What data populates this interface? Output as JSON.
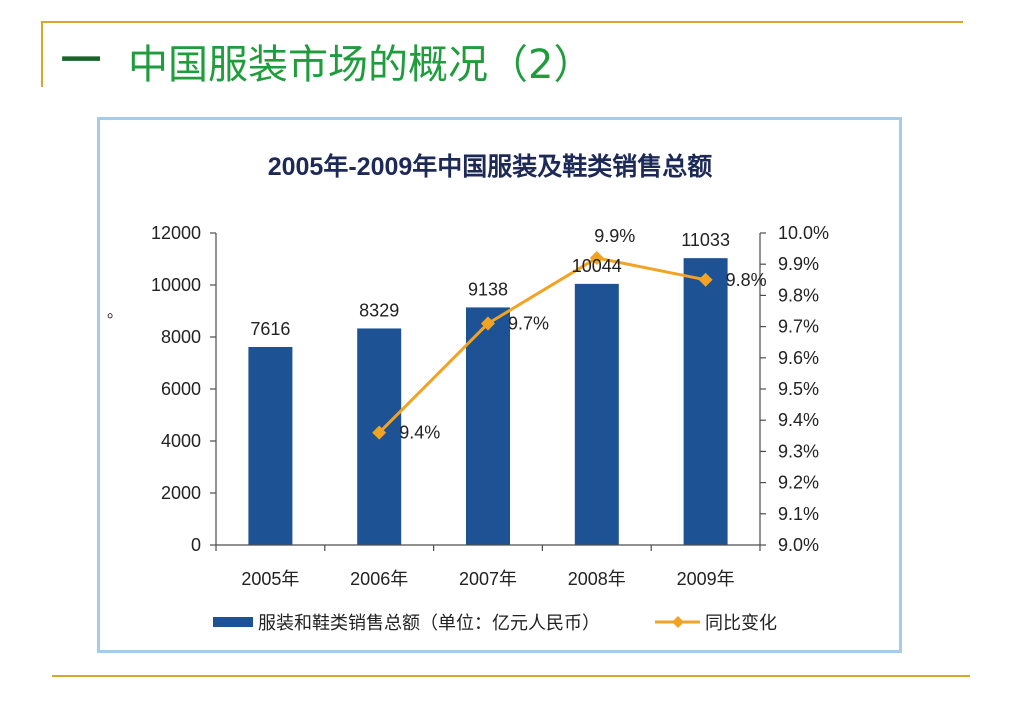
{
  "slide": {
    "bullet": "一",
    "title": "中国服装市场的概况（2）",
    "mark": "。"
  },
  "colors": {
    "accent_rule": "#d8a62c",
    "title": "#1f9d3c",
    "bullet": "#17642b",
    "chart_border": "#a8cbe7",
    "chart_title": "#1d2a57",
    "axis": "#4d4d4d",
    "text": "#222222"
  },
  "chart_data": {
    "type": "bar",
    "title": "2005年-2009年中国服装及鞋类销售总额",
    "categories": [
      "2005年",
      "2006年",
      "2007年",
      "2008年",
      "2009年"
    ],
    "series": [
      {
        "name": "服装和鞋类销售总额（单位：亿元人民币）",
        "type": "bar",
        "axis": "left",
        "color": "#1d5394",
        "values": [
          7616,
          8329,
          9138,
          10044,
          11033
        ],
        "data_labels": [
          "7616",
          "8329",
          "9138",
          "10044",
          "11033"
        ]
      },
      {
        "name": "同比变化",
        "type": "line",
        "axis": "right",
        "color": "#f2a324",
        "values": [
          null,
          9.36,
          9.71,
          9.92,
          9.85
        ],
        "data_labels": [
          "",
          "9.4%",
          "9.7%",
          "9.9%",
          "9.8%"
        ]
      }
    ],
    "y_left": {
      "min": 0,
      "max": 12000,
      "step": 2000,
      "ticks": [
        "0",
        "2000",
        "4000",
        "6000",
        "8000",
        "10000",
        "12000"
      ]
    },
    "y_right": {
      "min": 9.0,
      "max": 10.0,
      "step": 0.1,
      "ticks": [
        "9.0%",
        "9.1%",
        "9.2%",
        "9.3%",
        "9.4%",
        "9.5%",
        "9.6%",
        "9.7%",
        "9.8%",
        "9.9%",
        "10.0%"
      ]
    },
    "grid": false,
    "legend": "bottom"
  }
}
